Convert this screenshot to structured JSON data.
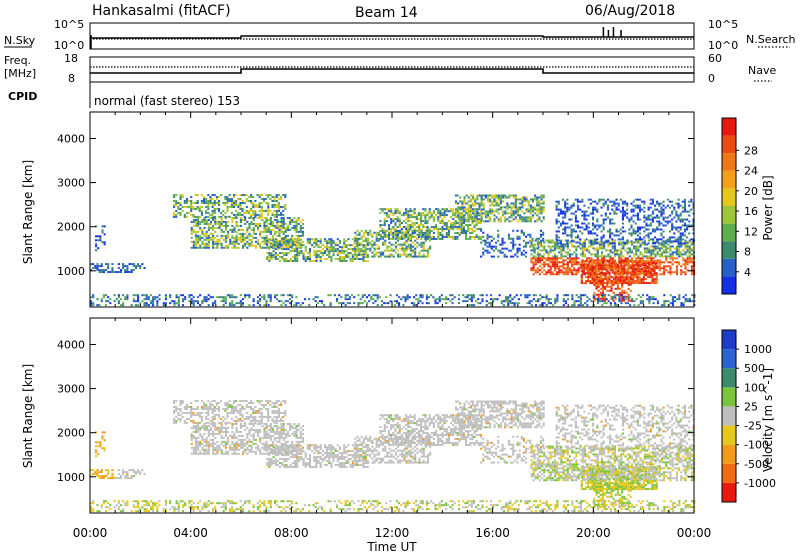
{
  "chart_data": {
    "type": "heatmap",
    "header": {
      "station": "Hankasalmi (fitACF)",
      "beam": "Beam 14",
      "date": "06/Aug/2018"
    },
    "time_axis": {
      "label": "Time UT",
      "ticks": [
        "00:00",
        "04:00",
        "08:00",
        "12:00",
        "16:00",
        "20:00",
        "00:00"
      ],
      "range_hours": [
        0,
        24
      ]
    },
    "noise_panel": {
      "left_label": "N.Sky",
      "right_label": "N.Search",
      "left_ticks": [
        "10^5",
        "10^0"
      ],
      "right_ticks": [
        "10^5",
        "10^0"
      ],
      "sky_level_changes_hours": [
        6.0,
        18.0
      ],
      "search_spikes_hours": [
        20.4,
        20.6,
        20.8,
        21.1
      ]
    },
    "freq_panel": {
      "left_label_1": "Freq.",
      "left_label_2": "[MHz]",
      "left_ticks": [
        "18",
        "8"
      ],
      "right_label": "Nave",
      "right_ticks": [
        "60",
        "0"
      ],
      "cpid_label": "CPID",
      "cpid_text": "normal (fast stereo) 153",
      "frequency_level_changes_hours": [
        6.0,
        18.0
      ]
    },
    "power_panel": {
      "ylabel": "Slant Range [km]",
      "y_ticks": [
        "1000",
        "2000",
        "3000",
        "4000"
      ],
      "y_range_km": [
        180,
        4600
      ],
      "colorbar_label": "Power [dB]",
      "colorbar_ticks": [
        "4",
        "8",
        "12",
        "16",
        "20",
        "24",
        "28"
      ],
      "colorbar_colors": [
        "#1430e6",
        "#2660c8",
        "#3c8a6e",
        "#5cae4e",
        "#9ec43a",
        "#e6c81c",
        "#f2a01a",
        "#f07814",
        "#ec4a10",
        "#e61a0e"
      ]
    },
    "velocity_panel": {
      "ylabel": "Slant Range [km]",
      "y_ticks": [
        "1000",
        "2000",
        "3000",
        "4000"
      ],
      "y_range_km": [
        180,
        4600
      ],
      "colorbar_label": "Velocity [m s^-1]",
      "colorbar_ticks": [
        "1000",
        "500",
        "100",
        "25",
        "-25",
        "-100",
        "-500",
        "-1000"
      ],
      "colorbar_colors": [
        "#1e3cc8",
        "#2a64d2",
        "#3c8a6e",
        "#7cc43c",
        "#bfbfbf",
        "#e6c81c",
        "#f29a1a",
        "#f06a14",
        "#ea1a10"
      ]
    }
  }
}
